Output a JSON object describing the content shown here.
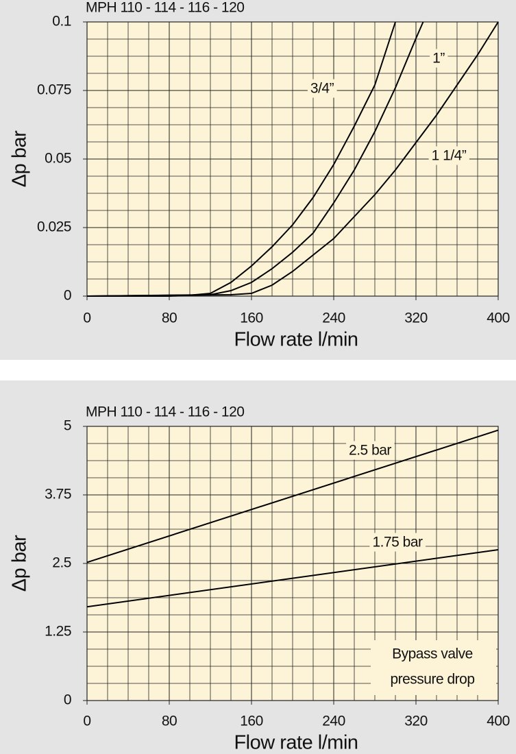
{
  "chart_data": [
    {
      "type": "line",
      "title": "MPH 110 - 114 - 116 - 120",
      "x_label": "Flow rate l/min",
      "y_label": "Δp bar",
      "xlim": [
        0,
        400
      ],
      "xticks": [
        0,
        80,
        160,
        240,
        320,
        400
      ],
      "ylim": [
        0,
        0.1
      ],
      "yticks": [
        0,
        0.025,
        0.05,
        0.075,
        0.1
      ],
      "grid": true,
      "series": [
        {
          "name": "3/4”",
          "color": "#000000",
          "x": [
            0,
            80,
            100,
            120,
            140,
            160,
            180,
            200,
            220,
            240,
            260,
            280,
            300
          ],
          "values": [
            0,
            0,
            0.0003,
            0.001,
            0.005,
            0.011,
            0.018,
            0.026,
            0.036,
            0.048,
            0.062,
            0.077,
            0.1
          ]
        },
        {
          "name": "1”",
          "color": "#000000",
          "x": [
            0,
            120,
            140,
            160,
            180,
            200,
            220,
            240,
            260,
            280,
            300,
            320,
            327
          ],
          "values": [
            0,
            0.0005,
            0.002,
            0.005,
            0.01,
            0.016,
            0.023,
            0.034,
            0.046,
            0.06,
            0.076,
            0.094,
            0.1
          ]
        },
        {
          "name": "1 1/4”",
          "color": "#000000",
          "x": [
            0,
            140,
            160,
            180,
            200,
            220,
            240,
            260,
            280,
            300,
            320,
            340,
            360,
            380,
            400
          ],
          "values": [
            0,
            0.0005,
            0.001,
            0.004,
            0.009,
            0.015,
            0.021,
            0.029,
            0.037,
            0.046,
            0.056,
            0.066,
            0.077,
            0.088,
            0.1
          ]
        }
      ]
    },
    {
      "type": "line",
      "title": "MPH 110 - 114 - 116 - 120",
      "x_label": "Flow rate l/min",
      "y_label": "Δp bar",
      "xlim": [
        0,
        400
      ],
      "xticks": [
        0,
        80,
        160,
        240,
        320,
        400
      ],
      "ylim": [
        0,
        5
      ],
      "yticks": [
        0,
        1.25,
        2.5,
        3.75,
        5
      ],
      "grid": true,
      "series": [
        {
          "name": "2.5 bar",
          "color": "#000000",
          "x": [
            0,
            400
          ],
          "values": [
            2.52,
            4.93
          ]
        },
        {
          "name": "1.75 bar",
          "color": "#000000",
          "x": [
            0,
            400
          ],
          "values": [
            1.71,
            2.75
          ]
        }
      ],
      "annotations": [
        "Bypass valve",
        "pressure drop"
      ]
    }
  ]
}
